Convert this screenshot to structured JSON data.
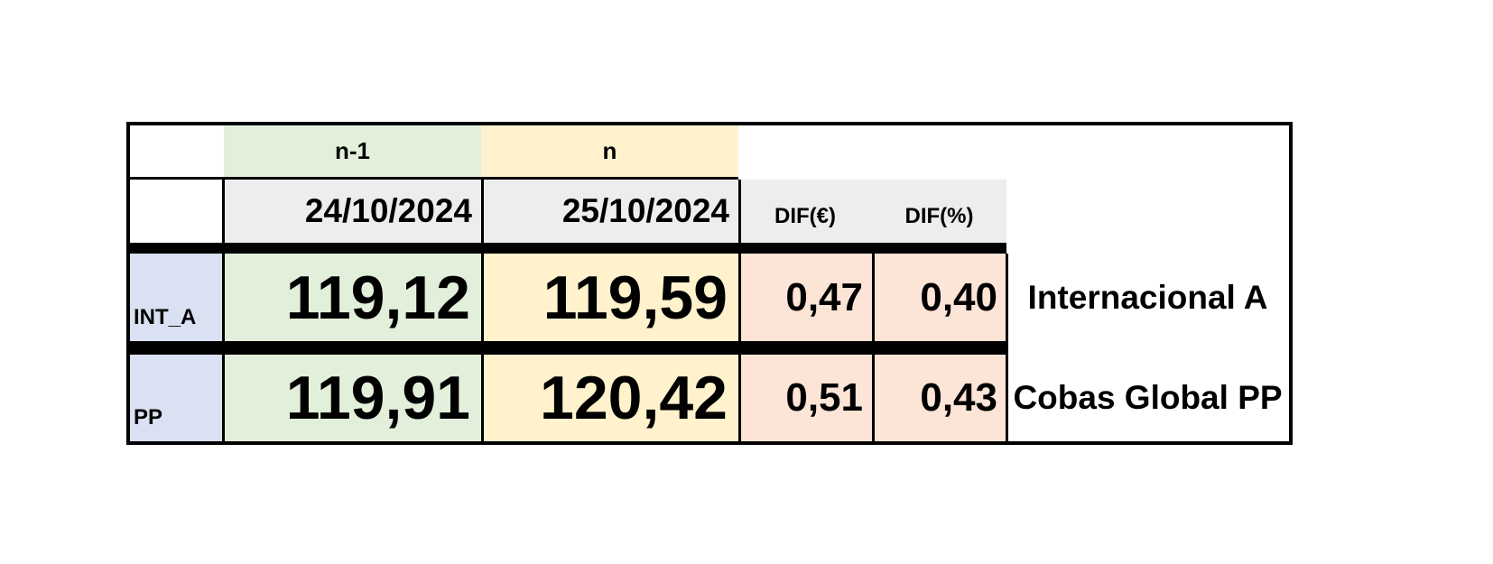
{
  "header": {
    "prev_label": "n-1",
    "curr_label": "n",
    "prev_date": "24/10/2024",
    "curr_date": "25/10/2024",
    "dif_eur_label": "DIF(€)",
    "dif_pct_label": "DIF(%)"
  },
  "rows": [
    {
      "code": "INT_A",
      "prev": "119,12",
      "curr": "119,59",
      "dif_eur": "0,47",
      "dif_pct": "0,40",
      "name": "Internacional A"
    },
    {
      "code": "PP",
      "prev": "119,91",
      "curr": "120,42",
      "dif_eur": "0,51",
      "dif_pct": "0,43",
      "name": "Cobas Global PP"
    }
  ],
  "colors": {
    "green": "#e2efda",
    "yellow": "#fff2cc",
    "peach": "#fce4d6",
    "blue": "#d9e1f2",
    "grey": "#ededed"
  }
}
